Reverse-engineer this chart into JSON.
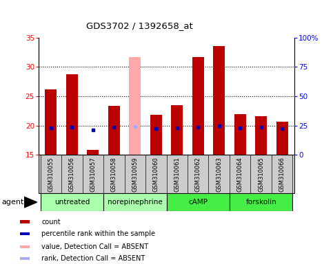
{
  "title": "GDS3702 / 1392658_at",
  "samples": [
    "GSM310055",
    "GSM310056",
    "GSM310057",
    "GSM310058",
    "GSM310059",
    "GSM310060",
    "GSM310061",
    "GSM310062",
    "GSM310063",
    "GSM310064",
    "GSM310065",
    "GSM310066"
  ],
  "count_values": [
    26.2,
    28.8,
    15.9,
    23.3,
    null,
    21.8,
    23.5,
    31.7,
    33.5,
    22.0,
    21.6,
    20.7
  ],
  "absent_value": 31.7,
  "absent_index": 4,
  "percentile_values": [
    23.2,
    23.4,
    21.2,
    23.6,
    24.1,
    22.7,
    23.2,
    23.9,
    24.7,
    22.8,
    23.5,
    22.3
  ],
  "absent_percentile_index": 4,
  "group_boundaries": [
    {
      "label": "untreated",
      "start": 0,
      "end": 3,
      "color": "#aaffaa"
    },
    {
      "label": "norepinephrine",
      "start": 3,
      "end": 6,
      "color": "#aaffaa"
    },
    {
      "label": "cAMP",
      "start": 6,
      "end": 9,
      "color": "#44ee44"
    },
    {
      "label": "forskolin",
      "start": 9,
      "end": 12,
      "color": "#44ee44"
    }
  ],
  "ylim_left": [
    15,
    35
  ],
  "ylim_right": [
    0,
    100
  ],
  "yticks_left": [
    15,
    20,
    25,
    30,
    35
  ],
  "yticks_right": [
    0,
    25,
    50,
    75,
    100
  ],
  "bar_color": "#bb0000",
  "absent_bar_color": "#ffaaaa",
  "dot_color": "#0000bb",
  "absent_dot_color": "#aaaaee",
  "bg_plot": "#ffffff",
  "bg_labels": "#cccccc",
  "legend_items": [
    {
      "color": "#bb0000",
      "label": "count",
      "marker": "square"
    },
    {
      "color": "#0000bb",
      "label": "percentile rank within the sample",
      "marker": "square"
    },
    {
      "color": "#ffaaaa",
      "label": "value, Detection Call = ABSENT",
      "marker": "square"
    },
    {
      "color": "#aaaaee",
      "label": "rank, Detection Call = ABSENT",
      "marker": "square"
    }
  ]
}
